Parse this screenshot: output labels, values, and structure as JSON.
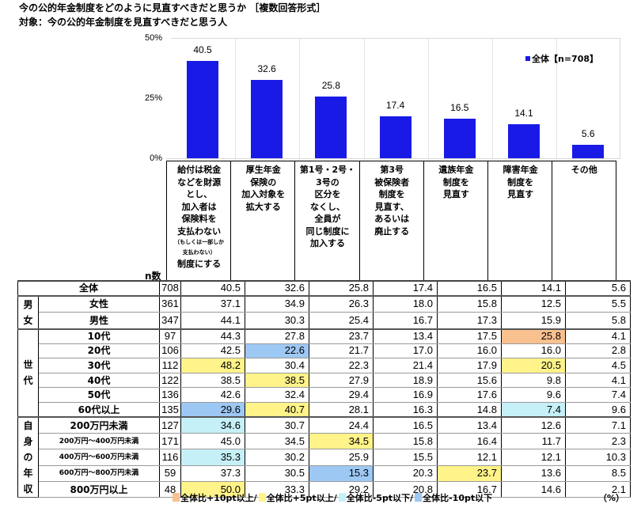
{
  "title": "今の公的年金制度をどのように見直すべきだと思うか ［複数回答形式］",
  "subtitle": "対象：今の公的年金制度を見直すべきだと思う人",
  "y_ticks": [
    "50%",
    "25%",
    "0%"
  ],
  "legend": {
    "label": "全体【n=708】",
    "color": "#1a1ae6"
  },
  "n_label": "n数",
  "columns": [
    {
      "lines": [
        "給付は税金",
        "などを財源",
        "とし、",
        "加入者は",
        "保険料を",
        "支払わない"
      ],
      "small": [
        "（もしくは一部しか",
        "支払わない）"
      ],
      "tail": [
        "制度にする"
      ]
    },
    {
      "lines": [
        "厚生年金",
        "保険の",
        "加入対象を",
        "拡大する"
      ]
    },
    {
      "lines": [
        "第1号・2号・",
        "3号の",
        "区分を",
        "なくし、",
        "全員が",
        "同じ制度に",
        "加入する"
      ]
    },
    {
      "lines": [
        "第3号",
        "被保険者",
        "制度を",
        "見直す、",
        "あるいは",
        "廃止する"
      ]
    },
    {
      "lines": [
        "遺族年金",
        "制度を",
        "見直す"
      ]
    },
    {
      "lines": [
        "障害年金",
        "制度を",
        "見直す"
      ]
    },
    {
      "lines": [
        "その他"
      ]
    }
  ],
  "groups": {
    "gender": "男女",
    "age": "世代",
    "income": "自身の年収"
  },
  "rows": [
    {
      "label": "全体",
      "n": "708",
      "values": [
        "40.5",
        "32.6",
        "25.8",
        "17.4",
        "16.5",
        "14.1",
        "5.6"
      ],
      "hl": [
        "",
        "",
        "",
        "",
        "",
        "",
        ""
      ]
    },
    {
      "label": "女性",
      "n": "361",
      "values": [
        "37.1",
        "34.9",
        "26.3",
        "18.0",
        "15.8",
        "12.5",
        "5.5"
      ],
      "hl": [
        "",
        "",
        "",
        "",
        "",
        "",
        ""
      ]
    },
    {
      "label": "男性",
      "n": "347",
      "values": [
        "44.1",
        "30.3",
        "25.4",
        "16.7",
        "17.3",
        "15.9",
        "5.8"
      ],
      "hl": [
        "",
        "",
        "",
        "",
        "",
        "",
        ""
      ]
    },
    {
      "label": "10代",
      "n": "97",
      "values": [
        "44.3",
        "27.8",
        "23.7",
        "13.4",
        "17.5",
        "25.8",
        "4.1"
      ],
      "hl": [
        "",
        "",
        "",
        "",
        "",
        "p10",
        ""
      ]
    },
    {
      "label": "20代",
      "n": "106",
      "values": [
        "42.5",
        "22.6",
        "21.7",
        "17.0",
        "16.0",
        "16.0",
        "2.8"
      ],
      "hl": [
        "",
        "m10",
        "",
        "",
        "",
        "",
        ""
      ]
    },
    {
      "label": "30代",
      "n": "112",
      "values": [
        "48.2",
        "30.4",
        "22.3",
        "21.4",
        "17.9",
        "20.5",
        "4.5"
      ],
      "hl": [
        "p5",
        "",
        "",
        "",
        "",
        "p5",
        ""
      ]
    },
    {
      "label": "40代",
      "n": "122",
      "values": [
        "38.5",
        "38.5",
        "27.9",
        "18.9",
        "15.6",
        "9.8",
        "4.1"
      ],
      "hl": [
        "",
        "p5",
        "",
        "",
        "",
        "",
        ""
      ]
    },
    {
      "label": "50代",
      "n": "136",
      "values": [
        "42.6",
        "32.4",
        "29.4",
        "16.9",
        "17.6",
        "9.6",
        "7.4"
      ],
      "hl": [
        "",
        "",
        "",
        "",
        "",
        "",
        ""
      ]
    },
    {
      "label": "60代以上",
      "n": "135",
      "values": [
        "29.6",
        "40.7",
        "28.1",
        "16.3",
        "14.8",
        "7.4",
        "9.6"
      ],
      "hl": [
        "m10",
        "p5",
        "",
        "",
        "",
        "m5",
        ""
      ]
    },
    {
      "label": "200万円未満",
      "n": "127",
      "values": [
        "34.6",
        "30.7",
        "24.4",
        "16.5",
        "13.4",
        "12.6",
        "7.1"
      ],
      "hl": [
        "m5",
        "",
        "",
        "",
        "",
        "",
        ""
      ]
    },
    {
      "label": "200万円～400万円未満",
      "n": "171",
      "values": [
        "45.0",
        "34.5",
        "34.5",
        "15.8",
        "16.4",
        "11.7",
        "2.3"
      ],
      "hl": [
        "",
        "",
        "p5",
        "",
        "",
        "",
        ""
      ]
    },
    {
      "label": "400万円～600万円未満",
      "n": "116",
      "values": [
        "35.3",
        "30.2",
        "25.9",
        "15.5",
        "12.1",
        "12.1",
        "10.3"
      ],
      "hl": [
        "m5",
        "",
        "",
        "",
        "",
        "",
        ""
      ]
    },
    {
      "label": "600万円～800万円未満",
      "n": "59",
      "values": [
        "37.3",
        "30.5",
        "15.3",
        "20.3",
        "23.7",
        "13.6",
        "8.5"
      ],
      "hl": [
        "",
        "",
        "m10",
        "",
        "p5",
        "",
        ""
      ]
    },
    {
      "label": "800万円以上",
      "n": "48",
      "values": [
        "50.0",
        "33.3",
        "29.2",
        "20.8",
        "16.7",
        "14.6",
        "2.1"
      ],
      "hl": [
        "p5",
        "",
        "",
        "",
        "",
        "",
        ""
      ]
    }
  ],
  "footer": {
    "items": [
      {
        "label": "全体比+10pt以上/",
        "color": "#f9c090"
      },
      {
        "label": "全体比+5pt以上/",
        "color": "#fff38a"
      },
      {
        "label": "全体比-5pt以下/",
        "color": "#c6f0f8"
      },
      {
        "label": "全体比-10pt以下",
        "color": "#9ec8f4"
      }
    ],
    "unit": "（%）"
  },
  "chart_data": {
    "type": "bar",
    "title": "今の公的年金制度をどのように見直すべきだと思うか ［複数回答形式］",
    "subtitle": "対象：今の公的年金制度を見直すべきだと思う人",
    "categories": [
      "給付は税金などを財源とし、加入者は保険料を支払わない（もしくは一部しか支払わない）制度にする",
      "厚生年金保険の加入対象を拡大する",
      "第1号・2号・3号の区分をなくし、全員が同じ制度に加入する",
      "第3号被保険者制度を見直す、あるいは廃止する",
      "遺族年金制度を見直す",
      "障害年金制度を見直す",
      "その他"
    ],
    "series": [
      {
        "name": "全体【n=708】",
        "values": [
          40.5,
          32.6,
          25.8,
          17.4,
          16.5,
          14.1,
          5.6
        ]
      }
    ],
    "xlabel": "",
    "ylabel": "%",
    "ylim": [
      0,
      50
    ],
    "yticks": [
      "0%",
      "25%",
      "50%"
    ],
    "grid": "vertical separators",
    "legend_position": "top-right",
    "table": {
      "columns": [
        "n数",
        "給付は税金…制度にする",
        "厚生年金保険の加入対象を拡大する",
        "第1号・2号・3号の区分をなくし、全員が同じ制度に加入する",
        "第3号被保険者制度を見直す、あるいは廃止する",
        "遺族年金制度を見直す",
        "障害年金制度を見直す",
        "その他"
      ],
      "rows": [
        [
          "全体",
          708,
          40.5,
          32.6,
          25.8,
          17.4,
          16.5,
          14.1,
          5.6
        ],
        [
          "男女/女性",
          361,
          37.1,
          34.9,
          26.3,
          18.0,
          15.8,
          12.5,
          5.5
        ],
        [
          "男女/男性",
          347,
          44.1,
          30.3,
          25.4,
          16.7,
          17.3,
          15.9,
          5.8
        ],
        [
          "世代/10代",
          97,
          44.3,
          27.8,
          23.7,
          13.4,
          17.5,
          25.8,
          4.1
        ],
        [
          "世代/20代",
          106,
          42.5,
          22.6,
          21.7,
          17.0,
          16.0,
          16.0,
          2.8
        ],
        [
          "世代/30代",
          112,
          48.2,
          30.4,
          22.3,
          21.4,
          17.9,
          20.5,
          4.5
        ],
        [
          "世代/40代",
          122,
          38.5,
          38.5,
          27.9,
          18.9,
          15.6,
          9.8,
          4.1
        ],
        [
          "世代/50代",
          136,
          42.6,
          32.4,
          29.4,
          16.9,
          17.6,
          9.6,
          7.4
        ],
        [
          "世代/60代以上",
          135,
          29.6,
          40.7,
          28.1,
          16.3,
          14.8,
          7.4,
          9.6
        ],
        [
          "自身の年収/200万円未満",
          127,
          34.6,
          30.7,
          24.4,
          16.5,
          13.4,
          12.6,
          7.1
        ],
        [
          "自身の年収/200万円～400万円未満",
          171,
          45.0,
          34.5,
          34.5,
          15.8,
          16.4,
          11.7,
          2.3
        ],
        [
          "自身の年収/400万円～600万円未満",
          116,
          35.3,
          30.2,
          25.9,
          15.5,
          12.1,
          12.1,
          10.3
        ],
        [
          "自身の年収/600万円～800万円未満",
          59,
          37.3,
          30.5,
          15.3,
          20.3,
          23.7,
          13.6,
          8.5
        ],
        [
          "自身の年収/800万円以上",
          48,
          50.0,
          33.3,
          29.2,
          20.8,
          16.7,
          14.6,
          2.1
        ]
      ],
      "highlight_legend": [
        "全体比+10pt以上",
        "全体比+5pt以上",
        "全体比-5pt以下",
        "全体比-10pt以下"
      ],
      "unit": "%"
    }
  }
}
